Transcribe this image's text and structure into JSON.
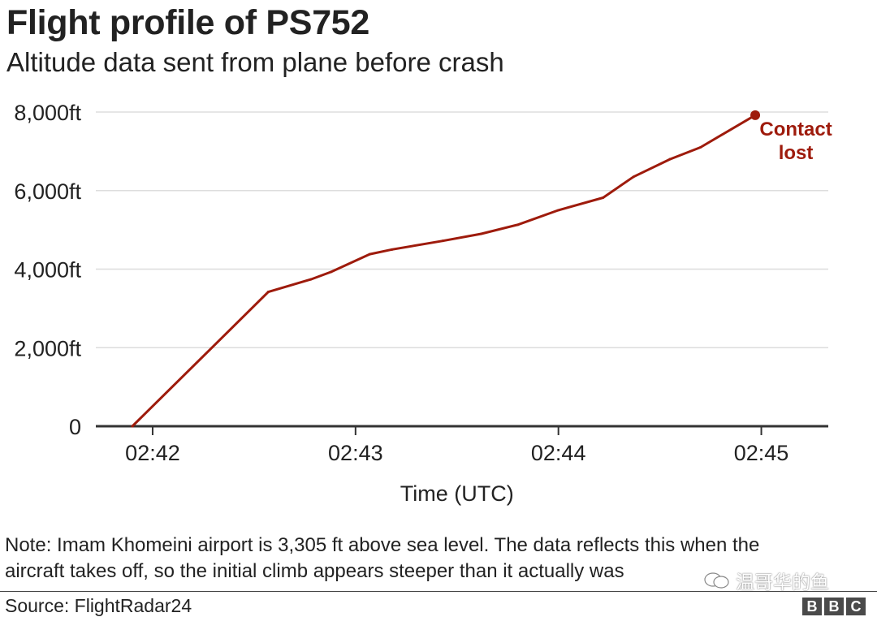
{
  "header": {
    "title": "Flight profile of PS752",
    "subtitle": "Altitude data sent from plane before crash"
  },
  "chart_data": {
    "type": "line",
    "title": "Flight profile of PS752",
    "subtitle": "Altitude data sent from plane before crash",
    "xlabel": "Time (UTC)",
    "ylabel": "",
    "x_unit": "minutes after 02:42 UTC",
    "xlim": [
      -0.28,
      3.33
    ],
    "ylim": [
      0,
      8000
    ],
    "x_ticks": [
      0,
      1,
      2,
      3
    ],
    "x_tick_labels": [
      "02:42",
      "02:43",
      "02:44",
      "02:45"
    ],
    "y_ticks": [
      0,
      2000,
      4000,
      6000,
      8000
    ],
    "y_tick_labels": [
      "0",
      "2,000ft",
      "4,000ft",
      "6,000ft",
      "8,000ft"
    ],
    "grid": true,
    "series": [
      {
        "name": "Altitude",
        "color": "#9e1b0c",
        "points": [
          [
            -0.1,
            0
          ],
          [
            0.57,
            3420
          ],
          [
            0.78,
            3740
          ],
          [
            0.88,
            3930
          ],
          [
            1.07,
            4380
          ],
          [
            1.18,
            4500
          ],
          [
            1.43,
            4720
          ],
          [
            1.62,
            4900
          ],
          [
            1.8,
            5130
          ],
          [
            2.0,
            5500
          ],
          [
            2.22,
            5820
          ],
          [
            2.37,
            6350
          ],
          [
            2.55,
            6800
          ],
          [
            2.7,
            7100
          ],
          [
            2.97,
            7920
          ]
        ]
      }
    ],
    "annotation": {
      "lines": [
        "Contact",
        "lost"
      ],
      "x": 2.97,
      "y": 7920,
      "color": "#9e1b0c"
    }
  },
  "note": {
    "line1": "Note: Imam Khomeini airport is 3,305 ft above sea level. The data reflects this when the",
    "line2": "aircraft takes off, so the initial climb appears steeper than it actually was"
  },
  "source": "Source: FlightRadar24",
  "watermark": "温哥华的鱼",
  "logo": [
    "B",
    "B",
    "C"
  ]
}
